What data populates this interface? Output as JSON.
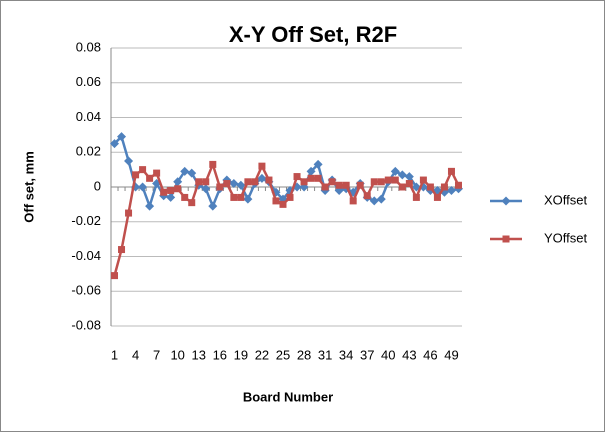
{
  "chart_data": {
    "type": "line",
    "title": "X-Y Off Set, R2F",
    "x_label": "Board Number",
    "y_label": "Off set, mm",
    "categories": [
      1,
      null,
      null,
      4,
      null,
      null,
      7,
      null,
      null,
      10,
      null,
      null,
      13,
      null,
      null,
      16,
      null,
      null,
      19,
      null,
      null,
      22,
      null,
      null,
      25,
      null,
      null,
      28,
      null,
      null,
      31,
      null,
      null,
      34,
      null,
      null,
      37,
      null,
      null,
      40,
      null,
      null,
      43,
      null,
      null,
      46,
      null,
      null,
      49,
      null
    ],
    "series": [
      {
        "name": "XOffset",
        "color": "#4f81bd",
        "marker": "diamond",
        "values": [
          0.025,
          0.029,
          0.015,
          0.0,
          0.0,
          -0.011,
          0.002,
          -0.005,
          -0.006,
          0.003,
          0.009,
          0.008,
          0.001,
          -0.001,
          -0.011,
          -0.001,
          0.004,
          0.002,
          0.001,
          -0.007,
          0.002,
          0.005,
          0.003,
          -0.003,
          -0.007,
          -0.002,
          0.0,
          0.0,
          0.009,
          0.013,
          -0.002,
          0.004,
          -0.002,
          -0.001,
          -0.003,
          0.002,
          -0.006,
          -0.008,
          -0.007,
          0.003,
          0.009,
          0.007,
          0.006,
          0.0,
          0.0,
          -0.002,
          -0.002,
          -0.003,
          -0.002,
          -0.001
        ]
      },
      {
        "name": "YOffset",
        "color": "#c0504d",
        "marker": "square",
        "values": [
          -0.051,
          -0.036,
          -0.015,
          0.007,
          0.01,
          0.005,
          0.008,
          -0.003,
          -0.002,
          -0.001,
          -0.006,
          -0.009,
          0.003,
          0.003,
          0.013,
          0.0,
          0.002,
          -0.006,
          -0.006,
          0.003,
          0.003,
          0.012,
          0.004,
          -0.008,
          -0.01,
          -0.006,
          0.006,
          0.003,
          0.005,
          0.005,
          0.0,
          0.003,
          0.001,
          0.001,
          -0.008,
          0.001,
          -0.005,
          0.003,
          0.003,
          0.004,
          0.004,
          0.0,
          0.002,
          -0.006,
          0.004,
          0.0,
          -0.006,
          0.0,
          0.009,
          0.001
        ]
      }
    ],
    "ylim": [
      -0.08,
      0.08
    ],
    "yticks": [
      -0.08,
      -0.06,
      -0.04,
      -0.02,
      0,
      0.02,
      0.04,
      0.06,
      0.08
    ],
    "grid": true,
    "legend": "right"
  }
}
